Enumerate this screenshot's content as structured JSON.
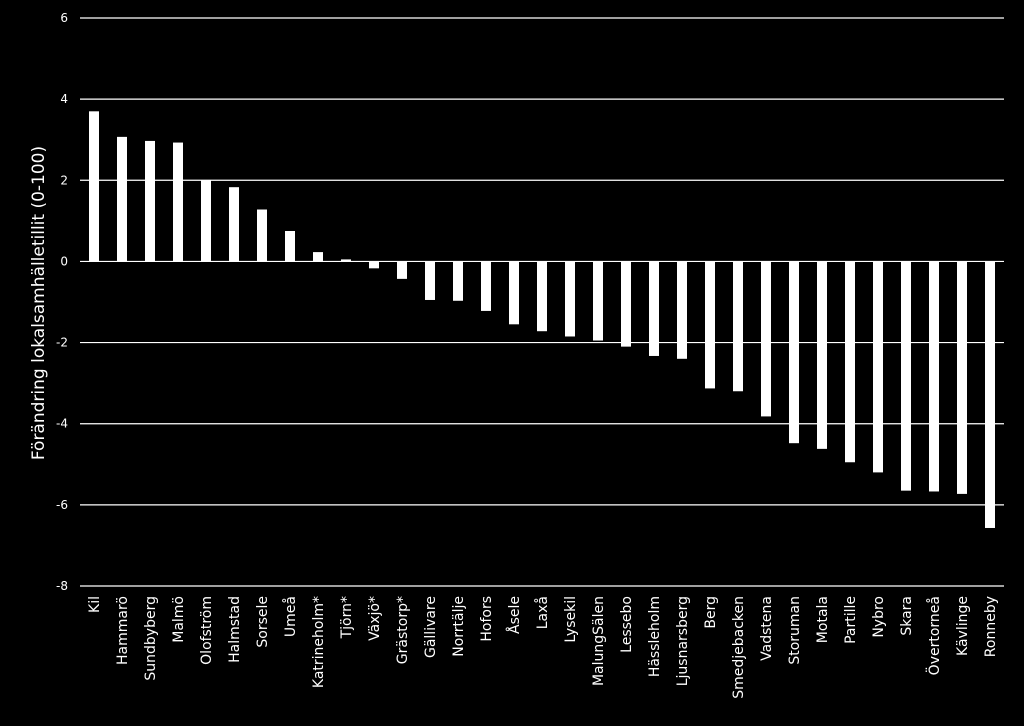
{
  "chart_data": {
    "type": "bar",
    "title": "",
    "xlabel": "",
    "ylabel": "Förändring lokalsamhälletillit (0-100)",
    "ylim": [
      -8,
      6
    ],
    "yticks": [
      "-8",
      "-6",
      "-4",
      "-2",
      "0",
      "2",
      "4",
      "6"
    ],
    "grid": true,
    "categories": [
      "Kil",
      "Hammarö",
      "Sundbyberg",
      "Malmö",
      "Olofström",
      "Halmstad",
      "Sorsele",
      "Umeå",
      "Katrineholm*",
      "Tjörn*",
      "Växjö*",
      "Grästorp*",
      "Gällivare",
      "Norrtälje",
      "Hofors",
      "Åsele",
      "Laxå",
      "Lysekil",
      "MalungSälen",
      "Lessebo",
      "Hässleholm",
      "Ljusnarsberg",
      "Berg",
      "Smedjebacken",
      "Vadstena",
      "Storuman",
      "Motala",
      "Partille",
      "Nybro",
      "Skara",
      "Övertorneå",
      "Kävlinge",
      "Ronneby"
    ],
    "values": [
      3.7,
      3.07,
      2.97,
      2.93,
      2.0,
      1.83,
      1.28,
      0.75,
      0.23,
      0.05,
      -0.17,
      -0.43,
      -0.95,
      -0.97,
      -1.22,
      -1.55,
      -1.72,
      -1.85,
      -1.95,
      -2.1,
      -2.33,
      -2.4,
      -3.13,
      -3.2,
      -3.82,
      -4.48,
      -4.62,
      -4.95,
      -5.2,
      -5.65,
      -5.67,
      -5.73,
      -6.57
    ],
    "bar_color": "#ffffff",
    "background_color": "#000000"
  }
}
